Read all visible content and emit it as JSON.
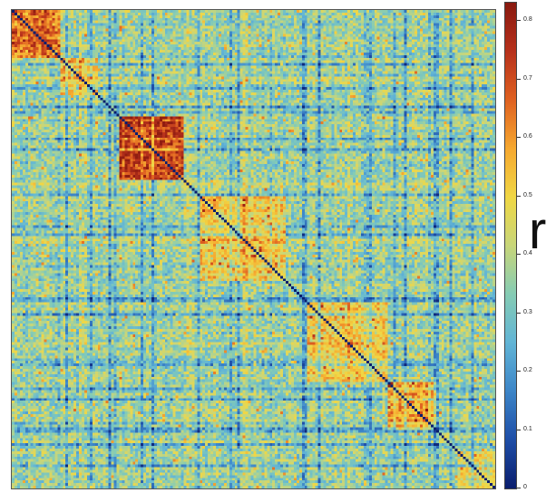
{
  "chart_data": {
    "type": "heatmap",
    "title": "",
    "xlabel": "",
    "ylabel": "",
    "matrix_size": 180,
    "symmetric": true,
    "diagonal_value": 0.0,
    "background_value": 0.36,
    "clusters": [
      {
        "name_hint": "block-1",
        "start": 0,
        "end": 18,
        "mean_r": 0.66
      },
      {
        "name_hint": "block-2",
        "start": 18,
        "end": 32,
        "mean_r": 0.5
      },
      {
        "name_hint": "block-3",
        "start": 40,
        "end": 64,
        "mean_r": 0.72
      },
      {
        "name_hint": "block-4",
        "start": 70,
        "end": 102,
        "mean_r": 0.5
      },
      {
        "name_hint": "block-5",
        "start": 110,
        "end": 140,
        "mean_r": 0.5
      },
      {
        "name_hint": "block-6",
        "start": 140,
        "end": 158,
        "mean_r": 0.58
      },
      {
        "name_hint": "block-7",
        "start": 166,
        "end": 180,
        "mean_r": 0.46
      }
    ],
    "colorbar": {
      "label": "r",
      "min": 0,
      "max": 0.83,
      "ticks": [
        0,
        0.1,
        0.2,
        0.3,
        0.4,
        0.5,
        0.6,
        0.7,
        0.8
      ],
      "tick_labels": [
        "0",
        "0.1",
        "0.2",
        "0.3",
        "0.4",
        "0.5",
        "0.6",
        "0.7",
        "0.8"
      ],
      "colormap": "parula-jet",
      "colormap_stops": [
        "#0a1e6e",
        "#1f4fa8",
        "#3d86c8",
        "#62b5d6",
        "#86ccb4",
        "#c8d67a",
        "#f0d745",
        "#f6a930",
        "#e06221",
        "#b8321c",
        "#8a1a10"
      ]
    }
  }
}
